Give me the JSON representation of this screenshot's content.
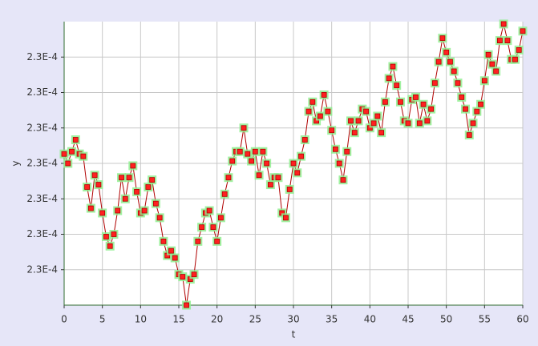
{
  "chart_data": {
    "type": "line",
    "x_label": "t",
    "y_label": "y",
    "x": [
      0,
      0.5,
      1,
      1.5,
      2,
      2.5,
      3,
      3.5,
      4,
      4.5,
      5,
      5.5,
      6,
      6.5,
      7,
      7.5,
      8,
      8.5,
      9,
      9.5,
      10,
      10.5,
      11,
      11.5,
      12,
      12.5,
      13,
      13.5,
      14,
      14.5,
      15,
      15.5,
      16,
      16.5,
      17,
      17.5,
      18,
      18.5,
      19,
      19.5,
      20,
      20.5,
      21,
      21.5,
      22,
      22.5,
      23,
      23.5,
      24,
      24.5,
      25,
      25.5,
      26,
      26.5,
      27,
      27.5,
      28,
      28.5,
      29,
      29.5,
      30,
      30.5,
      31,
      31.5,
      32,
      32.5,
      33,
      33.5,
      34,
      34.5,
      35,
      35.5,
      36,
      36.5,
      37,
      37.5,
      38,
      38.5,
      39,
      39.5,
      40,
      40.5,
      41,
      41.5,
      42,
      42.5,
      43,
      43.5,
      44,
      44.5,
      45,
      45.5,
      46,
      46.5,
      47,
      47.5,
      48,
      48.5,
      49,
      49.5,
      50,
      50.5,
      51,
      51.5,
      52,
      52.5,
      53,
      53.5,
      54,
      54.5,
      55,
      55.5,
      56,
      56.5,
      57,
      57.5,
      58,
      58.5,
      59,
      59.5,
      60
    ],
    "values": [
      0.0002299,
      0.0002295,
      0.00023,
      0.0002305,
      0.0002299,
      0.0002298,
      0.0002285,
      0.0002276,
      0.000229,
      0.0002286,
      0.0002274,
      0.0002264,
      0.000226,
      0.0002265,
      0.0002275,
      0.0002289,
      0.000228,
      0.0002289,
      0.0002294,
      0.0002283,
      0.0002274,
      0.0002275,
      0.0002285,
      0.0002288,
      0.0002278,
      0.0002272,
      0.0002262,
      0.0002256,
      0.0002258,
      0.0002255,
      0.0002248,
      0.0002247,
      0.0002235,
      0.0002246,
      0.0002248,
      0.0002262,
      0.0002268,
      0.0002274,
      0.0002275,
      0.0002268,
      0.0002262,
      0.0002272,
      0.0002282,
      0.0002289,
      0.0002296,
      0.00023,
      0.00023,
      0.000231,
      0.0002299,
      0.0002296,
      0.00023,
      0.000229,
      0.00023,
      0.0002295,
      0.0002286,
      0.0002289,
      0.0002289,
      0.0002274,
      0.0002272,
      0.0002284,
      0.0002295,
      0.0002291,
      0.0002298,
      0.0002305,
      0.0002317,
      0.0002321,
      0.0002313,
      0.0002315,
      0.0002324,
      0.0002317,
      0.0002309,
      0.0002301,
      0.0002295,
      0.0002288,
      0.00023,
      0.0002313,
      0.0002308,
      0.0002313,
      0.0002318,
      0.0002317,
      0.000231,
      0.0002312,
      0.0002315,
      0.0002308,
      0.0002321,
      0.0002331,
      0.0002336,
      0.0002328,
      0.0002321,
      0.0002313,
      0.0002312,
      0.0002322,
      0.0002323,
      0.0002312,
      0.000232,
      0.0002313,
      0.0002318,
      0.0002329,
      0.0002338,
      0.0002348,
      0.0002342,
      0.0002338,
      0.0002334,
      0.0002329,
      0.0002323,
      0.0002318,
      0.0002307,
      0.0002312,
      0.0002317,
      0.000232,
      0.000233,
      0.0002341,
      0.0002337,
      0.0002334,
      0.0002347,
      0.0002354,
      0.0002347,
      0.0002339,
      0.0002339,
      0.0002343,
      0.0002351
    ],
    "color": "#b00000",
    "marker_color": "#ff2020",
    "marker_halo": "#90ee90",
    "xlim": [
      0,
      60
    ],
    "xticks": [
      0,
      5,
      10,
      15,
      20,
      25,
      30,
      35,
      40,
      45,
      50,
      55,
      60
    ],
    "ylim": [
      0.0002235,
      0.0002355
    ],
    "yticks": [
      {
        "value": 0.000225,
        "label": "2.3E-4"
      },
      {
        "value": 0.0002265,
        "label": "2.3E-4"
      },
      {
        "value": 0.000228,
        "label": "2.3E-4"
      },
      {
        "value": 0.0002295,
        "label": "2.3E-4"
      },
      {
        "value": 0.000231,
        "label": "2.3E-4"
      },
      {
        "value": 0.0002325,
        "label": "2.3E-4"
      },
      {
        "value": 0.000234,
        "label": "2.3E-4"
      }
    ],
    "grid": true
  }
}
